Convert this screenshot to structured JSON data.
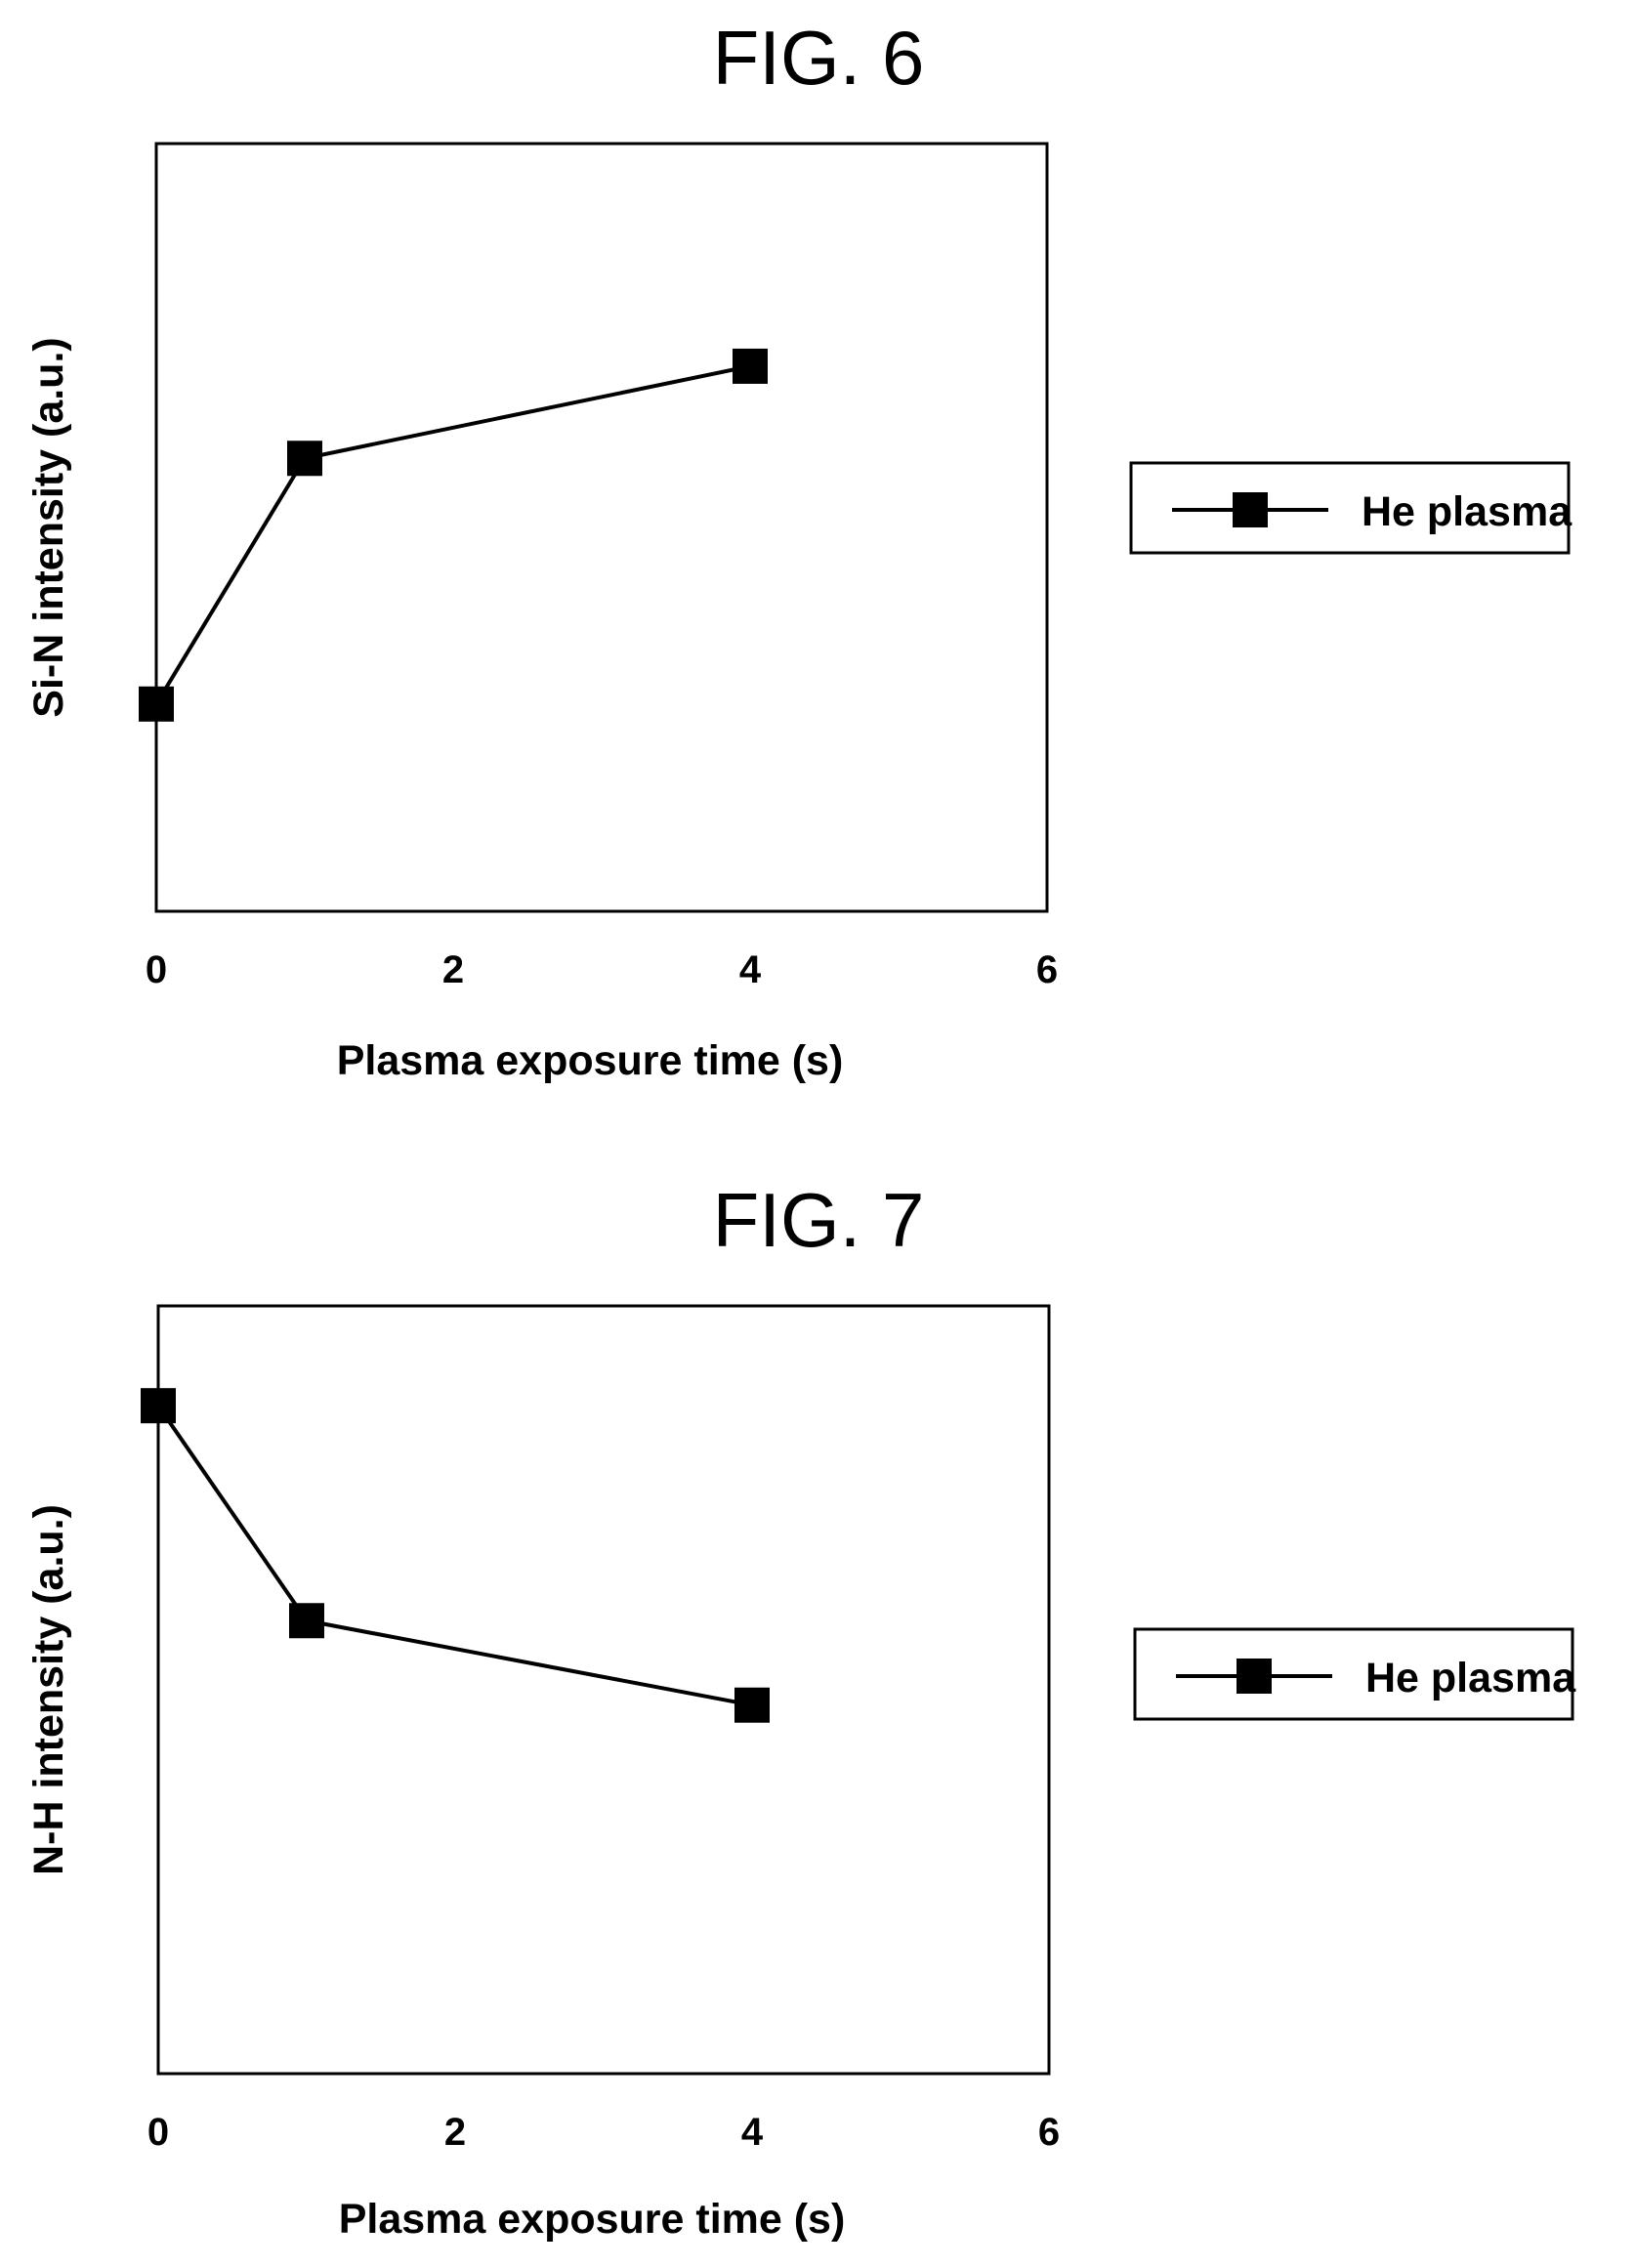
{
  "chart_data": [
    {
      "type": "line",
      "title": "FIG. 6",
      "xlabel": "Plasma exposure time (s)",
      "ylabel": "Si-N intensity (a.u.)",
      "xlim": [
        0,
        6
      ],
      "ylim": [
        0,
        1
      ],
      "xticks": [
        "0",
        "2",
        "4",
        "6"
      ],
      "grid": false,
      "legend_position": "right",
      "series": [
        {
          "name": "He plasma",
          "marker": "square",
          "color": "#000000",
          "x": [
            0,
            1,
            4
          ],
          "y": [
            0.27,
            0.59,
            0.71
          ]
        }
      ]
    },
    {
      "type": "line",
      "title": "FIG. 7",
      "xlabel": "Plasma exposure time (s)",
      "ylabel": "N-H intensity (a.u.)",
      "xlim": [
        0,
        6
      ],
      "ylim": [
        0,
        1
      ],
      "xticks": [
        "0",
        "2",
        "4",
        "6"
      ],
      "grid": false,
      "legend_position": "right",
      "series": [
        {
          "name": "He plasma",
          "marker": "square",
          "color": "#000000",
          "x": [
            0,
            1,
            4
          ],
          "y": [
            0.87,
            0.59,
            0.48
          ]
        }
      ]
    }
  ]
}
